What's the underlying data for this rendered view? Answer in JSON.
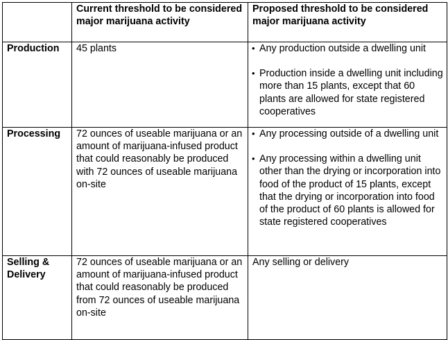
{
  "table": {
    "headers": {
      "corner": "",
      "current": "Current threshold to be considered major marijuana activity",
      "proposed": "Proposed threshold to be considered major marijuana activity"
    },
    "bullet_glyph": "•",
    "rows": [
      {
        "label": "Production",
        "current": "45 plants",
        "proposed": [
          "Any production outside a dwelling unit",
          "Production inside a dwelling unit including more than 15 plants, except that 60 plants are allowed for state registered cooperatives"
        ]
      },
      {
        "label": "Processing",
        "current": "72 ounces of useable marijuana or an amount of marijuana-infused product that could reasonably be produced with 72 ounces of useable marijuana on-site",
        "proposed": [
          "Any processing outside of a dwelling unit",
          "Any processing within a dwelling unit other than the drying or incorporation into food of the product of 15 plants, except that the drying or incorporation into food of the product of 60 plants is allowed for state registered cooperatives"
        ]
      },
      {
        "label": "Selling & Delivery",
        "current": "72 ounces of useable marijuana or an amount of marijuana-infused product that could reasonably be produced from 72 ounces of useable marijuana on-site",
        "proposed_text": "Any selling or delivery"
      }
    ]
  }
}
